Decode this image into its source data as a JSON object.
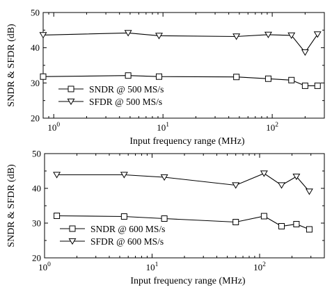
{
  "chart_data": [
    {
      "type": "line",
      "xscale": "log",
      "xlim": [
        0.8,
        300
      ],
      "ylim": [
        20,
        50
      ],
      "yticks": [
        20,
        30,
        40,
        50
      ],
      "xticks": [
        {
          "value": 1,
          "base": "10",
          "exp": "0"
        },
        {
          "value": 10,
          "base": "10",
          "exp": "1"
        },
        {
          "value": 100,
          "base": "10",
          "exp": "2"
        }
      ],
      "xlabel": "Input frequency range (MHz)",
      "ylabel": "SNDR & SFDR (dB)",
      "grid": false,
      "legend_position": "lower-left",
      "series": [
        {
          "name": "SNDR @ 500 MS/s",
          "marker": "square",
          "points": [
            [
              0.8,
              31.8
            ],
            [
              4.8,
              32.1
            ],
            [
              9.2,
              31.8
            ],
            [
              47,
              31.7
            ],
            [
              92,
              31.2
            ],
            [
              150,
              30.8
            ],
            [
              200,
              29.2
            ],
            [
              260,
              29.2
            ]
          ]
        },
        {
          "name": "SFDR @ 500 MS/s",
          "marker": "triangle-down",
          "points": [
            [
              0.8,
              43.6
            ],
            [
              4.8,
              44.2
            ],
            [
              9.2,
              43.4
            ],
            [
              47,
              43.2
            ],
            [
              92,
              43.7
            ],
            [
              150,
              43.5
            ],
            [
              200,
              38.7
            ],
            [
              260,
              43.8
            ]
          ]
        }
      ]
    },
    {
      "type": "line",
      "xscale": "log",
      "xlim": [
        1,
        400
      ],
      "ylim": [
        20,
        50
      ],
      "yticks": [
        20,
        30,
        40,
        50
      ],
      "xticks": [
        {
          "value": 1,
          "base": "10",
          "exp": "0"
        },
        {
          "value": 10,
          "base": "10",
          "exp": "1"
        },
        {
          "value": 100,
          "base": "10",
          "exp": "2"
        }
      ],
      "xlabel": "Input frequency range (MHz)",
      "ylabel": "SNDR & SFDR (dB)",
      "grid": false,
      "legend_position": "lower-left",
      "series": [
        {
          "name": "SNDR @ 600 MS/s",
          "marker": "square",
          "points": [
            [
              1.3,
              32.1
            ],
            [
              5.5,
              31.9
            ],
            [
              13,
              31.3
            ],
            [
              60,
              30.3
            ],
            [
              110,
              32.0
            ],
            [
              160,
              29.1
            ],
            [
              220,
              29.7
            ],
            [
              290,
              28.2
            ]
          ]
        },
        {
          "name": "SFDR @ 600 MS/s",
          "marker": "triangle-down",
          "points": [
            [
              1.3,
              43.9
            ],
            [
              5.5,
              43.9
            ],
            [
              13,
              43.2
            ],
            [
              60,
              40.9
            ],
            [
              110,
              44.3
            ],
            [
              160,
              40.9
            ],
            [
              220,
              43.4
            ],
            [
              290,
              39.1
            ]
          ]
        }
      ]
    }
  ]
}
